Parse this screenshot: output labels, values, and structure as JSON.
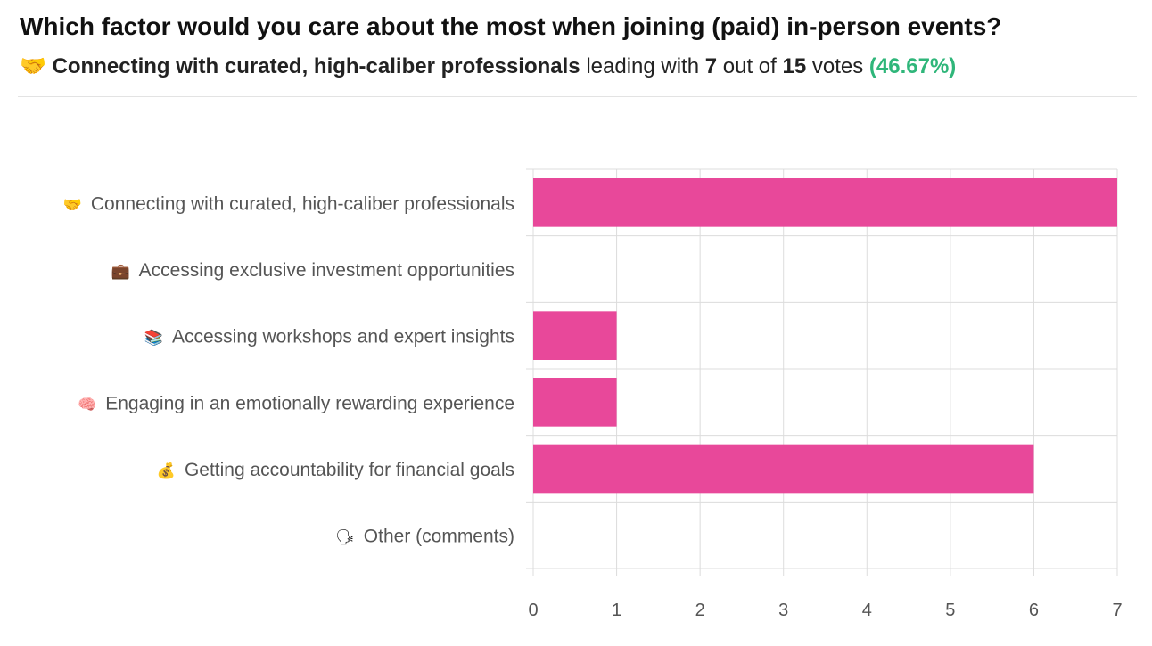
{
  "header": {
    "title": "Which factor would you care about the most when joining (paid) in-person events?",
    "lead_icon": "handshake-icon",
    "lead_option": "Connecting with curated, high-caliber professionals",
    "leading_with": "leading with",
    "lead_votes": "7",
    "out_of": "out of",
    "total_votes": "15",
    "votes_word": "votes",
    "lead_percent": "(46.67%)"
  },
  "colors": {
    "bar": "#e8489a",
    "grid": "#dcdcdc",
    "label": "#555555",
    "percent": "#2fb67a"
  },
  "chart_data": {
    "type": "bar",
    "orientation": "horizontal",
    "categories": [
      "Connecting with curated, high-caliber professionals",
      "Accessing exclusive investment opportunities",
      "Accessing workshops and expert insights",
      "Engaging in an emotionally rewarding experience",
      "Getting accountability for financial goals",
      "Other (comments)"
    ],
    "category_icons": [
      "handshake-icon",
      "briefcase-icon",
      "books-icon",
      "brain-icon",
      "money-bag-icon",
      "speaking-head-icon"
    ],
    "values": [
      7,
      0,
      1,
      1,
      6,
      0
    ],
    "xlim": [
      0,
      7
    ],
    "xticks": [
      0,
      1,
      2,
      3,
      4,
      5,
      6,
      7
    ],
    "grid": true,
    "title": "",
    "xlabel": "",
    "ylabel": ""
  }
}
